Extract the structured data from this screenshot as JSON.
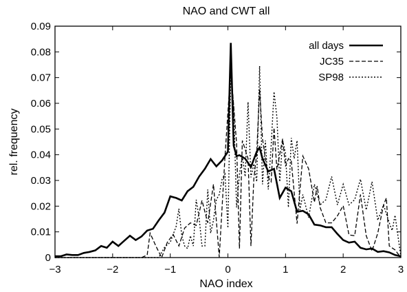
{
  "chart_data": {
    "type": "line",
    "title": "NAO and CWT all",
    "xlabel": "NAO index",
    "ylabel": "rel. frequency",
    "xlim": [
      -3,
      3
    ],
    "ylim": [
      0,
      0.09
    ],
    "xticks": [
      -3,
      -2,
      -1,
      0,
      1,
      2,
      3
    ],
    "yticks": [
      0,
      0.01,
      0.02,
      0.03,
      0.04,
      0.05,
      0.06,
      0.07,
      0.08,
      0.09
    ],
    "xtick_labels": [
      "−3",
      "−2",
      "−1",
      "0",
      "1",
      "2",
      "3"
    ],
    "ytick_labels": [
      "0",
      "0.01",
      "0.02",
      "0.03",
      "0.04",
      "0.05",
      "0.06",
      "0.07",
      "0.08",
      "0.09"
    ],
    "grid": false,
    "legend_position": "top-right",
    "series": [
      {
        "name": "all days",
        "style": "solid",
        "x": [
          -3.0,
          -2.9,
          -2.8,
          -2.7,
          -2.6,
          -2.5,
          -2.4,
          -2.3,
          -2.2,
          -2.1,
          -2.0,
          -1.9,
          -1.8,
          -1.7,
          -1.6,
          -1.5,
          -1.4,
          -1.3,
          -1.2,
          -1.1,
          -1.0,
          -0.9,
          -0.8,
          -0.7,
          -0.6,
          -0.5,
          -0.4,
          -0.3,
          -0.2,
          -0.1,
          0.0,
          0.05,
          0.1,
          0.15,
          0.2,
          0.3,
          0.4,
          0.5,
          0.55,
          0.6,
          0.7,
          0.8,
          0.9,
          1.0,
          1.1,
          1.2,
          1.3,
          1.4,
          1.5,
          1.6,
          1.7,
          1.8,
          1.9,
          2.0,
          2.1,
          2.2,
          2.3,
          2.4,
          2.5,
          2.6,
          2.7,
          2.8,
          2.9,
          3.0
        ],
        "y": [
          0.0005,
          0.0005,
          0.0012,
          0.001,
          0.001,
          0.0018,
          0.0022,
          0.0028,
          0.0045,
          0.0038,
          0.0062,
          0.0045,
          0.0065,
          0.0085,
          0.0068,
          0.0082,
          0.0105,
          0.0112,
          0.0145,
          0.0175,
          0.0238,
          0.0232,
          0.0222,
          0.0258,
          0.0275,
          0.0315,
          0.0345,
          0.0383,
          0.0355,
          0.0378,
          0.0412,
          0.0835,
          0.0435,
          0.0395,
          0.0398,
          0.0385,
          0.0352,
          0.0412,
          0.0428,
          0.0385,
          0.0335,
          0.0345,
          0.0232,
          0.0272,
          0.0258,
          0.0178,
          0.0182,
          0.0168,
          0.0128,
          0.0125,
          0.0118,
          0.0118,
          0.0092,
          0.0068,
          0.0058,
          0.0062,
          0.0038,
          0.0032,
          0.0035,
          0.0022,
          0.0025,
          0.002,
          0.001,
          0.0005
        ]
      },
      {
        "name": "JC35",
        "style": "dashed",
        "x": [
          -3.0,
          -2.6,
          -2.2,
          -1.8,
          -1.5,
          -1.4,
          -1.35,
          -1.25,
          -1.15,
          -1.05,
          -0.95,
          -0.85,
          -0.75,
          -0.65,
          -0.55,
          -0.45,
          -0.35,
          -0.25,
          -0.15,
          -0.05,
          0.05,
          0.15,
          0.2,
          0.25,
          0.35,
          0.4,
          0.45,
          0.5,
          0.55,
          0.6,
          0.7,
          0.75,
          0.8,
          0.85,
          0.95,
          1.0,
          1.05,
          1.1,
          1.2,
          1.3,
          1.4,
          1.5,
          1.55,
          1.6,
          1.7,
          1.8,
          1.9,
          2.0,
          2.1,
          2.2,
          2.3,
          2.4,
          2.5,
          2.6,
          2.7,
          2.75,
          2.8,
          2.9,
          3.0
        ],
        "y": [
          0.0,
          0.0,
          0.0,
          0.0,
          0.0,
          0.001,
          0.0095,
          0.0045,
          0.0,
          0.006,
          0.009,
          0.0045,
          0.0115,
          0.0135,
          0.0125,
          0.0222,
          0.0135,
          0.0285,
          0.0002,
          0.0395,
          0.0735,
          0.0445,
          0.0035,
          0.0455,
          0.0385,
          0.0045,
          0.0305,
          0.0405,
          0.0655,
          0.0462,
          0.0312,
          0.0295,
          0.0505,
          0.0342,
          0.0462,
          0.0355,
          0.0385,
          0.0375,
          0.0132,
          0.0395,
          0.0345,
          0.0215,
          0.0278,
          0.0195,
          0.0135,
          0.0135,
          0.0162,
          0.0202,
          0.0088,
          0.0085,
          0.0245,
          0.0085,
          0.0025,
          0.0095,
          0.0205,
          0.0232,
          0.0045,
          0.003,
          0.0
        ]
      },
      {
        "name": "SP98",
        "style": "dotted",
        "x": [
          -3.0,
          -2.5,
          -2.0,
          -1.5,
          -1.3,
          -1.2,
          -1.1,
          -1.0,
          -0.9,
          -0.85,
          -0.8,
          -0.75,
          -0.7,
          -0.65,
          -0.6,
          -0.55,
          -0.5,
          -0.45,
          -0.4,
          -0.35,
          -0.3,
          -0.25,
          -0.2,
          -0.15,
          -0.1,
          -0.05,
          0.0,
          0.05,
          0.1,
          0.15,
          0.2,
          0.25,
          0.3,
          0.35,
          0.4,
          0.45,
          0.5,
          0.55,
          0.6,
          0.65,
          0.7,
          0.75,
          0.8,
          0.85,
          0.9,
          0.95,
          1.0,
          1.05,
          1.1,
          1.15,
          1.2,
          1.25,
          1.3,
          1.4,
          1.5,
          1.6,
          1.7,
          1.8,
          1.9,
          2.0,
          2.1,
          2.2,
          2.3,
          2.4,
          2.5,
          2.6,
          2.7,
          2.8,
          2.85,
          2.9,
          3.0
        ],
        "y": [
          0.0,
          0.0,
          0.0,
          0.0,
          0.0,
          0.0,
          0.004,
          0.006,
          0.012,
          0.019,
          0.0085,
          0.0045,
          0.0035,
          0.0085,
          0.0045,
          0.0225,
          0.0155,
          0.0045,
          0.0045,
          0.0265,
          0.0095,
          0.0145,
          0.0225,
          0.0245,
          0.0305,
          0.0325,
          0.0115,
          0.0725,
          0.0585,
          0.0195,
          0.0325,
          0.0395,
          0.0315,
          0.0605,
          0.0312,
          0.0365,
          0.0295,
          0.0745,
          0.0285,
          0.0455,
          0.0265,
          0.0435,
          0.0645,
          0.0545,
          0.0295,
          0.0455,
          0.0405,
          0.0195,
          0.0465,
          0.0385,
          0.0455,
          0.0185,
          0.0245,
          0.0155,
          0.0285,
          0.0205,
          0.0225,
          0.0315,
          0.0205,
          0.0285,
          0.0205,
          0.0225,
          0.0305,
          0.0185,
          0.0295,
          0.0145,
          0.0205,
          0.0135,
          0.0105,
          0.0165,
          0.0005
        ]
      }
    ]
  }
}
